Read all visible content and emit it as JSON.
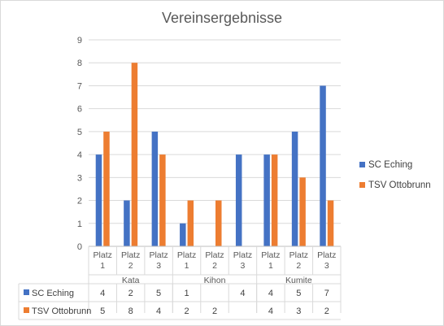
{
  "chart_data": {
    "type": "bar",
    "title": "Vereinsergebnisse",
    "ylim": [
      0,
      9
    ],
    "yticks": [
      0,
      1,
      2,
      3,
      4,
      5,
      6,
      7,
      8,
      9
    ],
    "grid": true,
    "legend_position": "right",
    "data_table": true,
    "groups": [
      {
        "label": "Kata",
        "categories": [
          "Platz 1",
          "Platz 2",
          "Platz 3"
        ]
      },
      {
        "label": "Kihon",
        "categories": [
          "Platz 1",
          "Platz 2",
          "Platz 3"
        ]
      },
      {
        "label": "Kumite",
        "categories": [
          "Platz 1",
          "Platz 2",
          "Platz 3"
        ]
      }
    ],
    "series": [
      {
        "name": "SC Eching",
        "color": "#4472c4",
        "values": [
          4,
          2,
          5,
          1,
          null,
          4,
          4,
          5,
          7
        ]
      },
      {
        "name": "TSV Ottobrunn",
        "color": "#ed7d31",
        "values": [
          5,
          8,
          4,
          2,
          2,
          null,
          4,
          3,
          2
        ]
      }
    ]
  }
}
